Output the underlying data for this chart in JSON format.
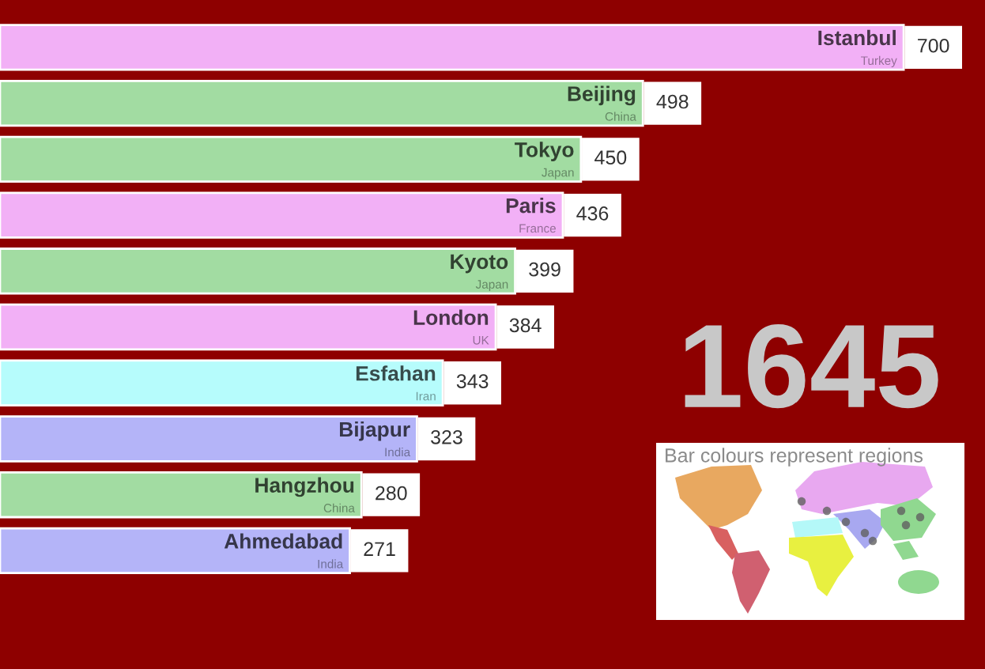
{
  "chart_data": {
    "type": "bar",
    "orientation": "horizontal",
    "categories": [
      "Istanbul\nTurkey",
      "Beijing\nChina",
      "Tokyo\nJapan",
      "Paris\nFrance",
      "Kyoto\nJapan",
      "London\nUK",
      "Esfahan\nIran",
      "Bijapur\nIndia",
      "Hangzhou\nChina",
      "Ahmedabad\nIndia"
    ],
    "values": [
      700,
      498,
      450,
      436,
      399,
      384,
      343,
      323,
      280,
      271
    ],
    "colors": [
      "#f2b0f6",
      "#a2dca2",
      "#a2dca2",
      "#f2b0f6",
      "#a2dca2",
      "#f2b0f6",
      "#b6fcfc",
      "#b4b4f8",
      "#a2dca2",
      "#b4b4f8"
    ],
    "data_labels": true,
    "tick_labels": false,
    "annotations": [
      "1645",
      "Bar colours represent regions"
    ]
  }
}
